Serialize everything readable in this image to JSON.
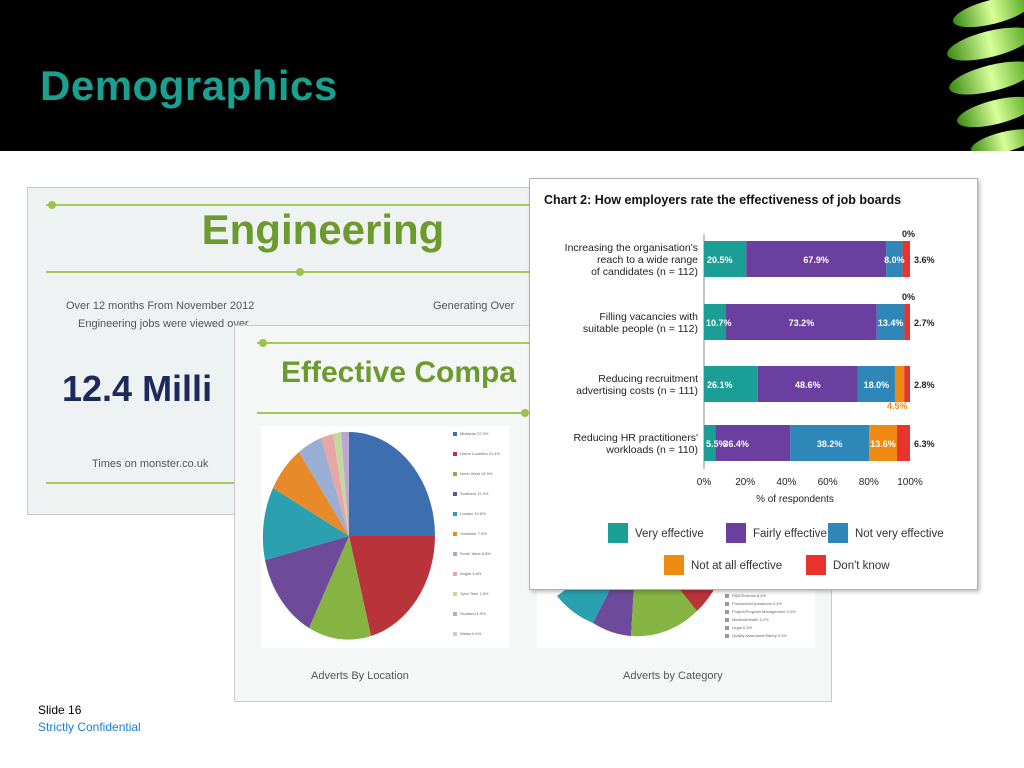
{
  "header": {
    "title": "Demographics"
  },
  "slide_engineering": {
    "title": "Engineering",
    "left_line1": "Over 12 months From November 2012",
    "left_line2": "Engineering jobs were viewed over",
    "right_line1": "Generating Over",
    "big_number": "12.4 Milli",
    "source": "Times on monster.co.uk"
  },
  "slide_effective": {
    "title": "Effective Compa",
    "caption_left": "Adverts By Location",
    "caption_right": "Adverts by Category",
    "location_legend": [
      "Midlands 22.3%",
      "Home Counties 21.4%",
      "North West 13.9%",
      "Southern 11.9%",
      "London 10.8%",
      "Yorkshire 7.9%",
      "South West 5.8%",
      "Anglia 3.8%",
      "Tyne Tees 1.8%",
      "Scotland 1.5%",
      "Wales 0.4%"
    ],
    "category_legend": [
      "R&D/Science 8.4%",
      "Production/Operations 5.4%",
      "Project/Program Management 5.0%",
      "Medical/Health 3.2%",
      "Legal 0.3%",
      "Quality Assurance/Safety 0.4%"
    ]
  },
  "footer": {
    "slide": "Slide 16",
    "confidential": "Strictly Confidential"
  },
  "chart_data": {
    "type": "bar",
    "title": "Chart 2: How employers rate the effectiveness of job boards",
    "xlabel": "% of respondents",
    "ylabel": "",
    "xlim": [
      0,
      100
    ],
    "stacked": true,
    "orientation": "horizontal",
    "x_ticks": [
      "0%",
      "20%",
      "40%",
      "60%",
      "80%",
      "100%"
    ],
    "categories": [
      [
        "Increasing the organisation's",
        "reach to a wide range",
        "of candidates (n = 112)"
      ],
      [
        "Filling vacancies with",
        "suitable people (n = 112)"
      ],
      [
        "Reducing recruitment",
        "advertising costs (n = 111)"
      ],
      [
        "Reducing HR practitioners'",
        "workloads (n = 110)"
      ]
    ],
    "series": [
      {
        "name": "Very effective",
        "color": "#1a9e96",
        "values": [
          20.5,
          10.7,
          26.1,
          5.5
        ],
        "labels": [
          "20.5%",
          "10.7%",
          "26.1%",
          "5.5%"
        ]
      },
      {
        "name": "Fairly effective",
        "color": "#6b3fa0",
        "values": [
          67.9,
          73.2,
          48.6,
          36.4
        ],
        "labels": [
          "67.9%",
          "73.2%",
          "48.6%",
          "36.4%"
        ]
      },
      {
        "name": "Not very effective",
        "color": "#2f86b8",
        "values": [
          8.0,
          13.4,
          18.0,
          38.2
        ],
        "labels": [
          "8.0%",
          "13.4%",
          "18.0%",
          "38.2%"
        ]
      },
      {
        "name": "Not at all effective",
        "color": "#ef8a12",
        "values": [
          0,
          0,
          4.5,
          13.6
        ],
        "labels": [
          "0%",
          "0%",
          "4.5%",
          "13.6%"
        ]
      },
      {
        "name": "Don't know",
        "color": "#e8332e",
        "values": [
          3.6,
          2.7,
          2.8,
          6.3
        ],
        "labels": [
          "3.6%",
          "2.7%",
          "2.8%",
          "6.3%"
        ]
      }
    ],
    "legend_placement": "bottom"
  }
}
